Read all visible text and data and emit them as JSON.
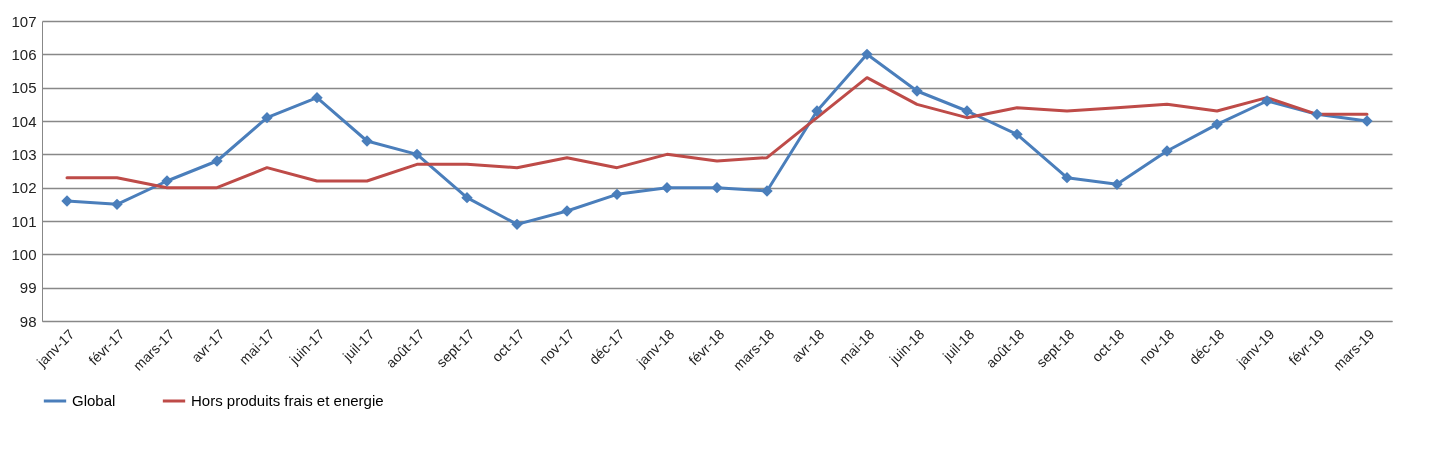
{
  "chart_data": {
    "type": "line",
    "categories": [
      "janv-17",
      "févr-17",
      "mars-17",
      "avr-17",
      "mai-17",
      "juin-17",
      "juil-17",
      "août-17",
      "sept-17",
      "oct-17",
      "nov-17",
      "déc-17",
      "janv-18",
      "févr-18",
      "mars-18",
      "avr-18",
      "mai-18",
      "juin-18",
      "juil-18",
      "août-18",
      "sept-18",
      "oct-18",
      "nov-18",
      "déc-18",
      "janv-19",
      "févr-19",
      "mars-19"
    ],
    "series": [
      {
        "name": "Global",
        "color": "#4a7ebb",
        "marker": "diamond",
        "values": [
          101.6,
          101.5,
          102.2,
          102.8,
          104.1,
          104.7,
          103.4,
          103.0,
          101.7,
          100.9,
          101.3,
          101.8,
          102.0,
          102.0,
          101.9,
          104.3,
          106.0,
          104.9,
          104.3,
          103.6,
          102.3,
          102.1,
          103.1,
          103.9,
          104.6,
          104.2,
          104.0
        ]
      },
      {
        "name": "Hors produits frais et energie",
        "color": "#be4b48",
        "marker": "none",
        "values": [
          102.3,
          102.3,
          102.0,
          102.0,
          102.6,
          102.2,
          102.2,
          102.7,
          102.7,
          102.6,
          102.9,
          102.6,
          103.0,
          102.8,
          102.9,
          104.1,
          105.3,
          104.5,
          104.1,
          104.4,
          104.3,
          104.4,
          104.5,
          104.3,
          104.7,
          104.2,
          104.2
        ]
      }
    ],
    "ylim": [
      98,
      107
    ],
    "yticks": [
      98,
      99,
      100,
      101,
      102,
      103,
      104,
      105,
      106,
      107
    ],
    "grid": "y",
    "legend": "bottom"
  }
}
